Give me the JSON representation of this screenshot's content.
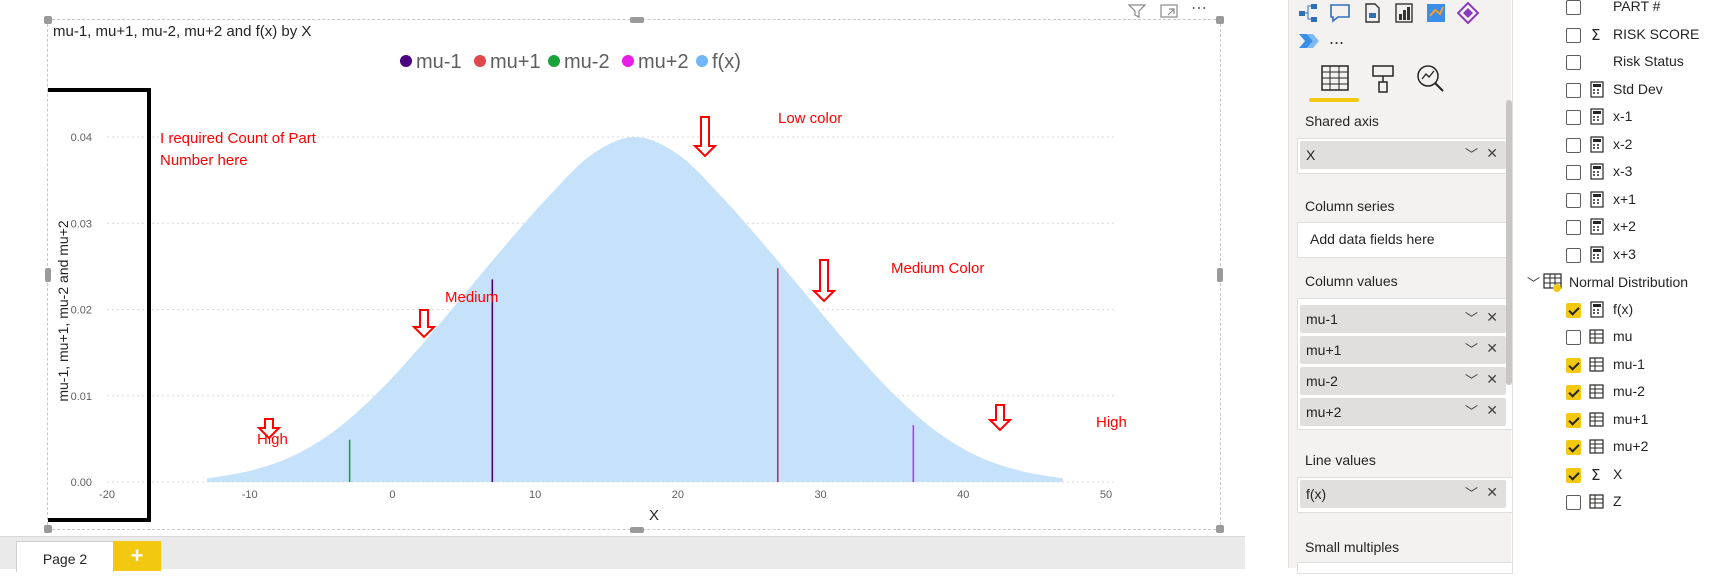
{
  "visual": {
    "title": "mu-1, mu+1, mu-2, mu+2 and f(x) by X",
    "annotations": {
      "count_note_line1": "I required Count of Part",
      "count_note_line2": "Number here",
      "low_color": "Low color",
      "medium": "Medium",
      "medium_color": "Medium Color",
      "high_left": "High",
      "high_right": "High"
    }
  },
  "chart_data": {
    "type": "area",
    "title": "mu-1, mu+1, mu-2, mu+2 and f(x) by X",
    "xlabel": "X",
    "ylabel": "mu-1, mu+1, mu-2 and mu+2",
    "xlim": [
      -20,
      50
    ],
    "ylim": [
      0,
      0.04
    ],
    "x_ticks": [
      "-20",
      "-10",
      "0",
      "10",
      "20",
      "30",
      "40",
      "50"
    ],
    "y_ticks": [
      "0.00",
      "0.01",
      "0.02",
      "0.03",
      "0.04"
    ],
    "grid": true,
    "legend_placement": "top-center",
    "legend": [
      {
        "name": "mu-1",
        "color": "#4b0082"
      },
      {
        "name": "mu+1",
        "color": "#e0474c"
      },
      {
        "name": "mu-2",
        "color": "#1aa33b"
      },
      {
        "name": "mu+2",
        "color": "#e61ee6"
      },
      {
        "name": "f(x)",
        "color": "#71b7f7"
      }
    ],
    "area_series": {
      "name": "f(x)",
      "color": "#c6e2fb",
      "x": [
        -13,
        -10,
        -7,
        -4,
        -1,
        2,
        5,
        8,
        11,
        14,
        17,
        20,
        23,
        26,
        29,
        32,
        35,
        38,
        41,
        44,
        47
      ],
      "y": [
        0.0004,
        0.0013,
        0.003,
        0.006,
        0.0104,
        0.0158,
        0.0217,
        0.0276,
        0.0332,
        0.038,
        0.04,
        0.038,
        0.0332,
        0.0276,
        0.0217,
        0.0158,
        0.0104,
        0.006,
        0.003,
        0.0013,
        0.0004
      ]
    },
    "markers": [
      {
        "name": "mu-2",
        "x": -3,
        "y": 0.0049,
        "color": "#1aa33b"
      },
      {
        "name": "mu-1",
        "x": 7,
        "y": 0.0235,
        "color": "#4b0082"
      },
      {
        "name": "mu+1",
        "x": 27,
        "y": 0.0248,
        "color": "#c0306c"
      },
      {
        "name": "mu+2",
        "x": 36.5,
        "y": 0.0066,
        "color": "#b23cf0"
      }
    ]
  },
  "viz_pane": {
    "tabs": [
      "build-visual",
      "format-visual",
      "analytics"
    ],
    "more": "...",
    "sections": {
      "shared_axis": {
        "label": "Shared axis",
        "fields": [
          "X"
        ]
      },
      "column_series": {
        "label": "Column series",
        "placeholder": "Add data fields here"
      },
      "column_values": {
        "label": "Column values",
        "fields": [
          "mu-1",
          "mu+1",
          "mu-2",
          "mu+2"
        ]
      },
      "line_values": {
        "label": "Line values",
        "fields": [
          "f(x)"
        ]
      },
      "small_multiples": {
        "label": "Small multiples"
      }
    }
  },
  "fields_pane": {
    "items": [
      {
        "label": "PART #",
        "checked": false,
        "icon": "none"
      },
      {
        "label": "RISK SCORE",
        "checked": false,
        "icon": "sigma"
      },
      {
        "label": "Risk Status",
        "checked": false,
        "icon": "none"
      },
      {
        "label": "Std Dev",
        "checked": false,
        "icon": "calculator"
      },
      {
        "label": "x-1",
        "checked": false,
        "icon": "calculator"
      },
      {
        "label": "x-2",
        "checked": false,
        "icon": "calculator"
      },
      {
        "label": "x-3",
        "checked": false,
        "icon": "calculator"
      },
      {
        "label": "x+1",
        "checked": false,
        "icon": "calculator"
      },
      {
        "label": "x+2",
        "checked": false,
        "icon": "calculator"
      },
      {
        "label": "x+3",
        "checked": false,
        "icon": "calculator"
      }
    ],
    "group": {
      "label": "Normal Distribution",
      "icon": "table"
    },
    "group_items": [
      {
        "label": "f(x)",
        "checked": true,
        "icon": "calculator"
      },
      {
        "label": "mu",
        "checked": false,
        "icon": "table-column"
      },
      {
        "label": "mu-1",
        "checked": true,
        "icon": "table-column"
      },
      {
        "label": "mu-2",
        "checked": true,
        "icon": "table-column"
      },
      {
        "label": "mu+1",
        "checked": true,
        "icon": "table-column"
      },
      {
        "label": "mu+2",
        "checked": true,
        "icon": "table-column"
      },
      {
        "label": "X",
        "checked": true,
        "icon": "sigma"
      },
      {
        "label": "Z",
        "checked": false,
        "icon": "table-column"
      }
    ]
  },
  "pages": {
    "tab_label": "Page 2",
    "add_label": "+"
  }
}
